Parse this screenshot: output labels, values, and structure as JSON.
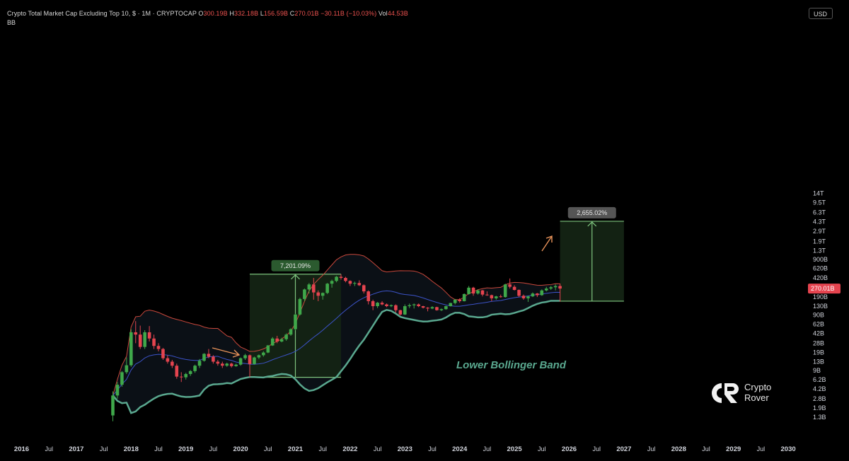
{
  "header": {
    "title": "Crypto Total Market Cap Excluding Top 10, $ · 1M · CRYPTOCAP",
    "o_label": "O",
    "o_value": "300.19B",
    "h_label": "H",
    "h_value": "332.18B",
    "l_label": "L",
    "l_value": "156.59B",
    "c_label": "C",
    "c_value": "270.01B",
    "change": "−30.11B (−10.03%)",
    "vol_label": "Vol",
    "vol_value": "44.53B",
    "indicator": "BB"
  },
  "currency": "USD",
  "logo": {
    "line1": "Crypto",
    "line2": "Rover"
  },
  "colors": {
    "background": "#000000",
    "up": "#3fa84a",
    "down": "#e5444f",
    "bb_upper": "#c9483c",
    "bb_basis": "#3c53c8",
    "bb_lower_highlight": "#5aa88f",
    "box_fill": "#142414",
    "box_border": "#7ec47e",
    "arrow": "#e8935a",
    "price_label": "#e5444f"
  },
  "chart_data": {
    "type": "candlestick",
    "title": "Crypto Total Market Cap Excluding Top 10, $ · 1M · CRYPTOCAP",
    "scale": "log",
    "x_ticks": [
      "2016",
      "Jul",
      "2017",
      "Jul",
      "2018",
      "Jul",
      "2019",
      "Jul",
      "2020",
      "Jul",
      "2021",
      "Jul",
      "2022",
      "Jul",
      "2023",
      "Jul",
      "2024",
      "Jul",
      "2025",
      "Jul",
      "2026",
      "Jul",
      "2027",
      "Jul",
      "2028",
      "Jul",
      "2029",
      "Jul",
      "2030"
    ],
    "y_ticks": [
      "14T",
      "9.5T",
      "6.3T",
      "4.3T",
      "2.9T",
      "1.9T",
      "1.3T",
      "900B",
      "620B",
      "420B",
      "290B",
      "190B",
      "130B",
      "90B",
      "62B",
      "42B",
      "28B",
      "19B",
      "13B",
      "9B",
      "6.2B",
      "4.2B",
      "2.8B",
      "1.9B",
      "1.3B"
    ],
    "current_price_label": "270.01B",
    "measurements": [
      {
        "label": "7,201.09%",
        "from_date": "2020-03",
        "to_date": "2021-11",
        "low": "6.8B",
        "high": "490B"
      },
      {
        "label": "2,655.02%",
        "from_date": "2025-11",
        "to_date": "2027-01",
        "low": "160B",
        "high": "4.4T"
      }
    ],
    "annotation": "Lower Bollinger Band",
    "series": [
      {
        "name": "BB",
        "kind": "bollinger_bands",
        "components": [
          "upper",
          "basis",
          "lower"
        ]
      }
    ],
    "candles_approx": [
      [
        "2017-09",
        1.4,
        3.8,
        1.1,
        3.2
      ],
      [
        "2017-10",
        3.2,
        5.6,
        2.8,
        5.0
      ],
      [
        "2017-11",
        5.0,
        8.8,
        4.6,
        8.4
      ],
      [
        "2017-12",
        8.4,
        15.5,
        7.8,
        11.2
      ],
      [
        "2018-01",
        11.2,
        50,
        10.5,
        44
      ],
      [
        "2018-02",
        44,
        70,
        28,
        40
      ],
      [
        "2018-03",
        40,
        58,
        22,
        24
      ],
      [
        "2018-04",
        24,
        48,
        22,
        44
      ],
      [
        "2018-05",
        44,
        57,
        30,
        34
      ],
      [
        "2018-06",
        34,
        40,
        22,
        25
      ],
      [
        "2018-07",
        25,
        28,
        20,
        22
      ],
      [
        "2018-08",
        22,
        23,
        14,
        15
      ],
      [
        "2018-09",
        15,
        17,
        12,
        13
      ],
      [
        "2018-10",
        13,
        14,
        10,
        11
      ],
      [
        "2018-11",
        11,
        12,
        6.4,
        7.0
      ],
      [
        "2018-12",
        7.0,
        8.4,
        5.6,
        6.8
      ],
      [
        "2019-01",
        6.8,
        8.2,
        6.2,
        7.8
      ],
      [
        "2019-02",
        7.8,
        9.2,
        7.2,
        8.8
      ],
      [
        "2019-03",
        8.8,
        11.5,
        8.2,
        11
      ],
      [
        "2019-04",
        11,
        14.5,
        10,
        13.5
      ],
      [
        "2019-05",
        13.5,
        18.5,
        13,
        18
      ],
      [
        "2019-06",
        18,
        22,
        15,
        16
      ],
      [
        "2019-07",
        16,
        17,
        12,
        13
      ],
      [
        "2019-08",
        13,
        14,
        11,
        12
      ],
      [
        "2019-09",
        12,
        13,
        10,
        11
      ],
      [
        "2019-10",
        11,
        12.5,
        10.5,
        12
      ],
      [
        "2019-11",
        12,
        12.5,
        10.2,
        10.8
      ],
      [
        "2019-12",
        10.8,
        12,
        10.5,
        11.5
      ],
      [
        "2020-01",
        11.5,
        15.5,
        11,
        15
      ],
      [
        "2020-02",
        15,
        18,
        14,
        17
      ],
      [
        "2020-03",
        17,
        17.5,
        6.8,
        11.8
      ],
      [
        "2020-04",
        11.8,
        16,
        11.5,
        15.5
      ],
      [
        "2020-05",
        15.5,
        17.5,
        14.5,
        17
      ],
      [
        "2020-06",
        17,
        20,
        16,
        19
      ],
      [
        "2020-07",
        19,
        26,
        18.5,
        25.5
      ],
      [
        "2020-08",
        25.5,
        36,
        25,
        34
      ],
      [
        "2020-09",
        34,
        38,
        28,
        30
      ],
      [
        "2020-10",
        30,
        35,
        29,
        33
      ],
      [
        "2020-11",
        33,
        42,
        31,
        40
      ],
      [
        "2020-12",
        40,
        52,
        38,
        50
      ],
      [
        "2021-01",
        50,
        95,
        48,
        92
      ],
      [
        "2021-02",
        92,
        185,
        88,
        175
      ],
      [
        "2021-03",
        175,
        270,
        160,
        260
      ],
      [
        "2021-04",
        260,
        340,
        220,
        320
      ],
      [
        "2021-05",
        320,
        420,
        170,
        230
      ],
      [
        "2021-06",
        230,
        250,
        160,
        200
      ],
      [
        "2021-07",
        200,
        230,
        170,
        225
      ],
      [
        "2021-08",
        225,
        340,
        215,
        330
      ],
      [
        "2021-09",
        330,
        390,
        280,
        370
      ],
      [
        "2021-10",
        370,
        455,
        350,
        440
      ],
      [
        "2021-11",
        440,
        490,
        390,
        420
      ],
      [
        "2021-12",
        420,
        440,
        350,
        370
      ],
      [
        "2022-01",
        370,
        380,
        300,
        330
      ],
      [
        "2022-02",
        330,
        360,
        300,
        340
      ],
      [
        "2022-03",
        340,
        380,
        300,
        310
      ],
      [
        "2022-04",
        310,
        320,
        220,
        240
      ],
      [
        "2022-05",
        240,
        250,
        140,
        160
      ],
      [
        "2022-06",
        160,
        170,
        110,
        130
      ],
      [
        "2022-07",
        130,
        155,
        120,
        150
      ],
      [
        "2022-08",
        150,
        160,
        135,
        140
      ],
      [
        "2022-09",
        140,
        145,
        125,
        130
      ],
      [
        "2022-10",
        130,
        140,
        125,
        135
      ],
      [
        "2022-11",
        135,
        140,
        100,
        110
      ],
      [
        "2022-12",
        110,
        112,
        88,
        92
      ],
      [
        "2023-01",
        92,
        140,
        90,
        130
      ],
      [
        "2023-02",
        130,
        145,
        120,
        135
      ],
      [
        "2023-03",
        135,
        145,
        118,
        140
      ],
      [
        "2023-04",
        140,
        145,
        125,
        130
      ],
      [
        "2023-05",
        130,
        132,
        118,
        122
      ],
      [
        "2023-06",
        122,
        125,
        105,
        118
      ],
      [
        "2023-07",
        118,
        130,
        115,
        125
      ],
      [
        "2023-08",
        125,
        127,
        108,
        110
      ],
      [
        "2023-09",
        110,
        118,
        106,
        115
      ],
      [
        "2023-10",
        115,
        132,
        112,
        130
      ],
      [
        "2023-11",
        130,
        150,
        128,
        148
      ],
      [
        "2023-12",
        148,
        175,
        140,
        170
      ],
      [
        "2024-01",
        170,
        180,
        150,
        160
      ],
      [
        "2024-02",
        160,
        220,
        158,
        215
      ],
      [
        "2024-03",
        215,
        300,
        210,
        280
      ],
      [
        "2024-04",
        280,
        290,
        200,
        220
      ],
      [
        "2024-05",
        220,
        260,
        210,
        250
      ],
      [
        "2024-06",
        250,
        255,
        195,
        210
      ],
      [
        "2024-07",
        210,
        240,
        200,
        205
      ],
      [
        "2024-08",
        205,
        210,
        160,
        180
      ],
      [
        "2024-09",
        180,
        200,
        170,
        195
      ],
      [
        "2024-10",
        195,
        210,
        185,
        190
      ],
      [
        "2024-11",
        190,
        330,
        185,
        320
      ],
      [
        "2024-12",
        320,
        410,
        270,
        290
      ],
      [
        "2025-01",
        290,
        310,
        250,
        255
      ],
      [
        "2025-02",
        255,
        260,
        190,
        200
      ],
      [
        "2025-03",
        200,
        210,
        170,
        180
      ],
      [
        "2025-04",
        180,
        200,
        155,
        195
      ],
      [
        "2025-05",
        195,
        230,
        190,
        220
      ],
      [
        "2025-06",
        220,
        225,
        190,
        205
      ],
      [
        "2025-07",
        205,
        260,
        200,
        250
      ],
      [
        "2025-08",
        250,
        290,
        240,
        270
      ],
      [
        "2025-09",
        270,
        300,
        255,
        285
      ],
      [
        "2025-10",
        285,
        320,
        250,
        300
      ],
      [
        "2025-11",
        300.19,
        332.18,
        156.59,
        270.01
      ]
    ]
  }
}
